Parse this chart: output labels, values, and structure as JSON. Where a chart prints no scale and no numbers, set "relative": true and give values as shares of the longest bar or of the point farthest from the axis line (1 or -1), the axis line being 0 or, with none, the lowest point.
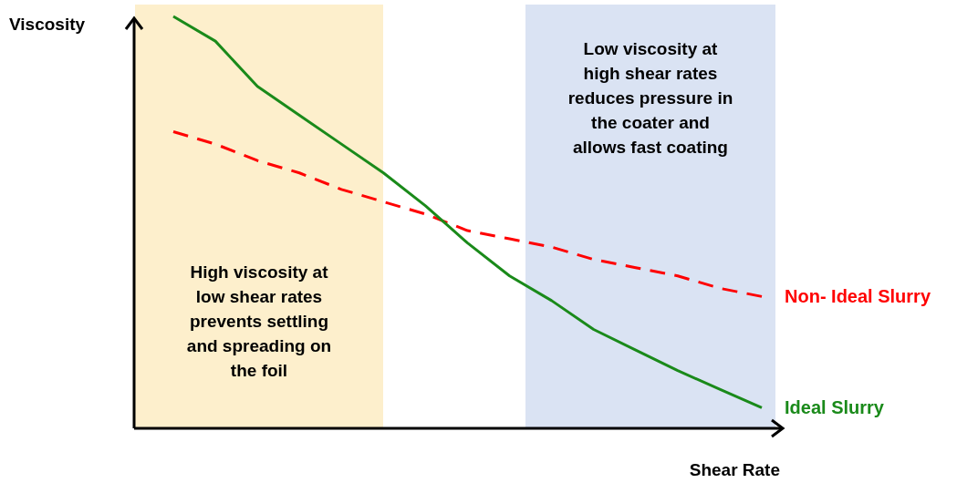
{
  "chart_data": {
    "type": "line",
    "relative": true,
    "xlabel": "Shear Rate",
    "ylabel": "Viscosity",
    "categories": [
      null,
      null,
      null,
      null,
      null,
      null,
      null,
      null,
      null,
      null,
      null,
      null,
      null,
      null,
      null
    ],
    "series": [
      {
        "name": "Non- Ideal Slurry",
        "color": "#ff0000",
        "line_style": "dashed",
        "values": [
          0.72,
          0.69,
          0.65,
          0.62,
          0.58,
          0.55,
          0.52,
          0.48,
          0.46,
          0.44,
          0.41,
          0.39,
          0.37,
          0.34,
          0.32
        ]
      },
      {
        "name": "Ideal Slurry",
        "color": "#1a8a1a",
        "line_style": "solid",
        "values": [
          1,
          0.94,
          0.83,
          0.76,
          0.69,
          0.62,
          0.54,
          0.45,
          0.37,
          0.31,
          0.24,
          0.19,
          0.14,
          0.095,
          0.05
        ]
      }
    ],
    "annotations": [
      "High viscosity at low shear rates prevents settling and spreading on the foil",
      "Low viscosity at high shear rates reduces pressure in the coater and allows fast coating"
    ]
  }
}
